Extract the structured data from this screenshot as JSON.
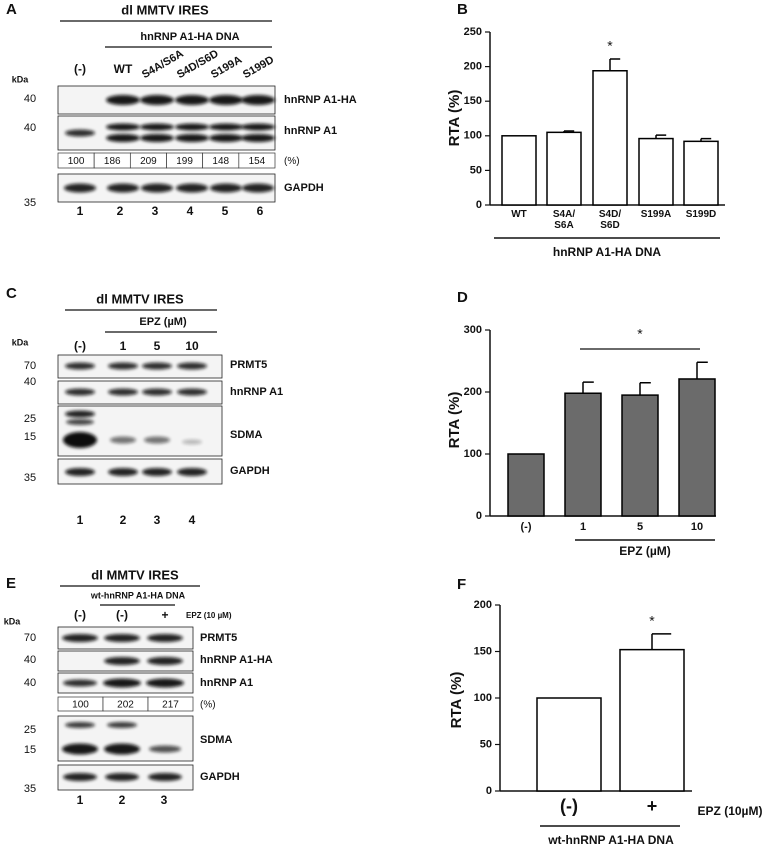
{
  "blots": {
    "A": {
      "letter": "A",
      "construct": "dl MMTV IRES",
      "treatment": "hnRNP A1-HA DNA",
      "lanes": [
        "(-)",
        "WT",
        "S4A/S6A",
        "S4D/S6D",
        "S199A",
        "S199D"
      ],
      "kda": "kDa",
      "markers": [
        40,
        40,
        35
      ],
      "proteins": [
        "hnRNP A1-HA",
        "hnRNP A1",
        "GAPDH"
      ],
      "quantification": [
        100,
        186,
        209,
        199,
        148,
        154
      ],
      "quantification_unit": "(%)",
      "lane_numbers": [
        1,
        2,
        3,
        4,
        5,
        6
      ]
    },
    "C": {
      "letter": "C",
      "construct": "dl MMTV IRES",
      "treatment": "EPZ (µM)",
      "lanes": [
        "(-)",
        "1",
        "5",
        "10"
      ],
      "kda": "kDa",
      "markers": [
        70,
        40,
        25,
        15,
        35
      ],
      "proteins": [
        "PRMT5",
        "hnRNP A1",
        "SDMA",
        "GAPDH"
      ],
      "lane_numbers": [
        1,
        2,
        3,
        4
      ]
    },
    "E": {
      "letter": "E",
      "construct": "dl MMTV IRES",
      "treatment": "wt-hnRNP A1-HA DNA",
      "lanes": [
        "(-)",
        "(-)",
        "+"
      ],
      "lane_treatment": "EPZ (10 µM)",
      "kda": "kDa",
      "markers": [
        70,
        40,
        40,
        25,
        15,
        35
      ],
      "proteins": [
        "PRMT5",
        "hnRNP A1-HA",
        "hnRNP A1",
        "SDMA",
        "GAPDH"
      ],
      "quantification": [
        100,
        202,
        217
      ],
      "quantification_unit": "(%)",
      "lane_numbers": [
        1,
        2,
        3
      ]
    }
  },
  "chart_data": [
    {
      "type": "bar",
      "letter": "B",
      "ylabel": "RTA (%)",
      "categories": [
        "WT",
        "S4A/\nS6A",
        "S4D/\nS6D",
        "S199A",
        "S199D"
      ],
      "values": [
        100,
        105,
        194,
        96,
        92
      ],
      "errors": [
        null,
        2,
        17,
        5,
        4
      ],
      "color": "#ffffff",
      "edgecolor": "#000000",
      "ylim": [
        0,
        250
      ],
      "yticks": [
        0,
        50,
        100,
        150,
        200,
        250
      ],
      "significance": "*",
      "xlabel": "hnRNP A1-HA DNA"
    },
    {
      "type": "bar",
      "letter": "D",
      "ylabel": "RTA (%)",
      "categories": [
        "(-)",
        "1",
        "5",
        "10"
      ],
      "values": [
        100,
        198,
        195,
        221
      ],
      "errors": [
        null,
        18,
        20,
        27
      ],
      "color": "#6b6b6b",
      "edgecolor": "#000000",
      "ylim": [
        0,
        300
      ],
      "yticks": [
        0,
        100,
        200,
        300
      ],
      "significance": "*",
      "xlabel": "EPZ (µM)"
    },
    {
      "type": "bar",
      "letter": "F",
      "ylabel": "RTA (%)",
      "categories": [
        "(-)",
        "+"
      ],
      "values": [
        100,
        152
      ],
      "errors": [
        null,
        17
      ],
      "color": "#ffffff",
      "edgecolor": "#000000",
      "ylim": [
        0,
        200
      ],
      "yticks": [
        0,
        50,
        100,
        150,
        200
      ],
      "significance": "*",
      "x_note": "EPZ (10µM)",
      "xlabel": "wt-hnRNP A1-HA DNA"
    }
  ]
}
